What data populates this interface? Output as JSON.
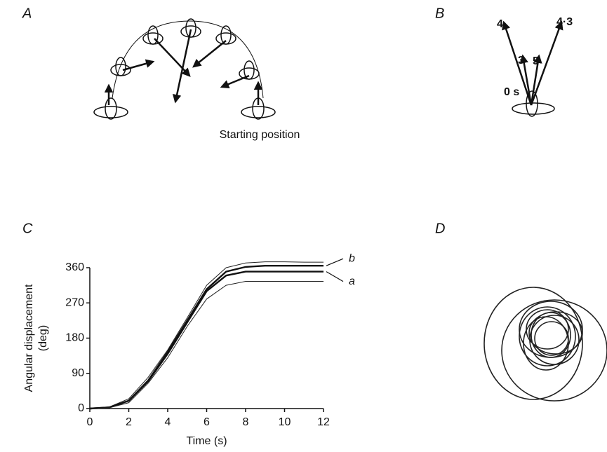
{
  "panels": {
    "a": {
      "label": "A",
      "caption": "Starting position"
    },
    "b": {
      "label": "B",
      "times": [
        "4",
        "3",
        "5",
        "4·3",
        "0 s"
      ]
    },
    "d": {
      "label": "D"
    }
  },
  "chart_data": {
    "type": "line",
    "label": "C",
    "xlabel": "Time (s)",
    "ylabel": "Angular displacement",
    "ylabel_unit": "(deg)",
    "x": [
      0,
      1,
      2,
      3,
      4,
      5,
      6,
      7,
      8,
      9,
      10,
      11,
      12
    ],
    "series": [
      {
        "color": "#222",
        "values": [
          0,
          4,
          25,
          80,
          150,
          232,
          315,
          360,
          372,
          375,
          375,
          374,
          374
        ]
      },
      {
        "name": "b",
        "color": "#111",
        "values": [
          0,
          3,
          20,
          72,
          145,
          225,
          305,
          350,
          362,
          365,
          365,
          365,
          365
        ]
      },
      {
        "name": "a",
        "color": "#111",
        "values": [
          0,
          3,
          20,
          70,
          140,
          220,
          300,
          340,
          350,
          350,
          350,
          350,
          350
        ]
      },
      {
        "color": "#222",
        "values": [
          0,
          2,
          15,
          65,
          130,
          210,
          280,
          315,
          325,
          325,
          325,
          325,
          325
        ]
      }
    ],
    "xlim": [
      0,
      12
    ],
    "xticks": [
      0,
      2,
      4,
      6,
      8,
      10,
      12
    ],
    "ylim": [
      0,
      360
    ],
    "yticks": [
      0,
      90,
      180,
      270,
      360
    ]
  }
}
